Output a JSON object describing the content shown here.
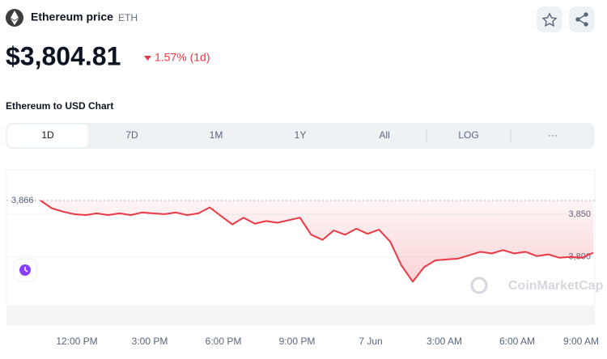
{
  "header": {
    "title": "Ethereum price",
    "ticker": "ETH",
    "price": "$3,804.81",
    "change": "1.57% (1d)",
    "chart_label": "Ethereum to USD Chart"
  },
  "tabs": [
    "1D",
    "7D",
    "1M",
    "1Y",
    "All",
    "LOG",
    "···"
  ],
  "watermark": "CoinMarketCap",
  "chart_data": {
    "type": "line",
    "series": [
      {
        "name": "ETH",
        "color": "#ea3943",
        "values": [
          3866,
          3857,
          3853,
          3850,
          3849,
          3851,
          3849,
          3851,
          3849,
          3852,
          3851,
          3850,
          3852,
          3849,
          3851,
          3858,
          3848,
          3838,
          3846,
          3839,
          3842,
          3840,
          3843,
          3846,
          3826,
          3820,
          3831,
          3826,
          3833,
          3827,
          3832,
          3818,
          3790,
          3771,
          3788,
          3796,
          3797,
          3798,
          3802,
          3806,
          3804,
          3808,
          3804,
          3806,
          3801,
          3803,
          3799,
          3800,
          3799,
          3805
        ]
      }
    ],
    "reference": {
      "value": 3866,
      "label": "3,866"
    },
    "ylim": [
      3743,
      3902
    ],
    "yticks": [
      {
        "value": 3800,
        "label": "3,800"
      },
      {
        "value": 3850,
        "label": "3,850"
      }
    ],
    "xticks": [
      "12:00 PM",
      "3:00 PM",
      "6:00 PM",
      "9:00 PM",
      "7 Jun",
      "3:00 AM",
      "6:00 AM",
      "9:00 AM"
    ],
    "grid": true
  }
}
